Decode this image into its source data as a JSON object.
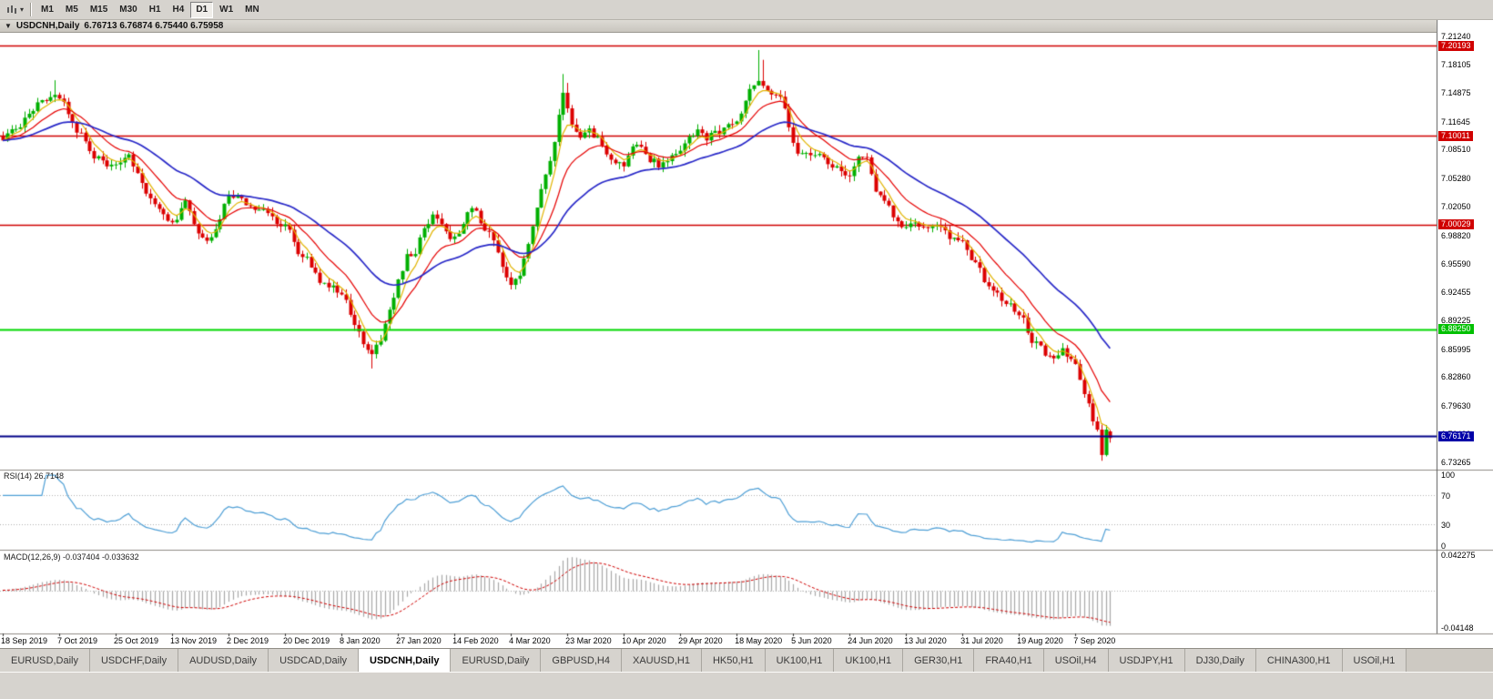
{
  "window": {
    "background": "#d6d3ce"
  },
  "icons": {
    "collapse_arrow": "▼",
    "dropdown_caret": "▾"
  },
  "toolbar": {
    "timeframes": [
      {
        "label": "M1",
        "active": false
      },
      {
        "label": "M5",
        "active": false
      },
      {
        "label": "M15",
        "active": false
      },
      {
        "label": "M30",
        "active": false
      },
      {
        "label": "H1",
        "active": false
      },
      {
        "label": "H4",
        "active": false
      },
      {
        "label": "D1",
        "active": true
      },
      {
        "label": "W1",
        "active": false
      },
      {
        "label": "MN",
        "active": false
      }
    ]
  },
  "chart": {
    "title": {
      "symbol": "USDCNH,Daily",
      "ohlc": "6.76713 6.76874 6.75440 6.75958",
      "open": "6.76713",
      "high": "6.76874",
      "low": "6.75440",
      "close": "6.75958"
    }
  },
  "chart_data": {
    "type": "candlestick",
    "symbol": "USDCNH",
    "timeframe": "Daily",
    "candle_count": 256,
    "x_label_every": 13,
    "x_labels": [
      "18 Sep 2019",
      "7 Oct 2019",
      "25 Oct 2019",
      "13 Nov 2019",
      "2 Dec 2019",
      "20 Dec 2019",
      "8 Jan 2020",
      "27 Jan 2020",
      "14 Feb 2020",
      "4 Mar 2020",
      "23 Mar 2020",
      "10 Apr 2020",
      "29 Apr 2020",
      "18 May 2020",
      "5 Jun 2020",
      "24 Jun 2020",
      "13 Jul 2020",
      "31 Jul 2020",
      "19 Aug 2020",
      "7 Sep 2020"
    ],
    "price_axis_labels": [
      "7.21240",
      "7.18105",
      "7.14875",
      "7.11645",
      "7.08510",
      "7.05280",
      "7.02050",
      "6.98820",
      "6.95590",
      "6.92455",
      "6.89225",
      "6.85995",
      "6.82860",
      "6.79630",
      "6.76400",
      "6.73265"
    ],
    "price_range": {
      "top": 7.2165,
      "bottom": 6.724
    },
    "candle_colors": {
      "up": "#00B000",
      "down": "#DC0000"
    },
    "h_lines": [
      {
        "value": 7.20193,
        "label": "7.20193",
        "color": "#D00000",
        "badge": "#D00000",
        "width": 1.3,
        "layer": "below"
      },
      {
        "value": 7.10011,
        "label": "7.10011",
        "color": "#D00000",
        "badge": "#D00000",
        "width": 1.3,
        "layer": "below"
      },
      {
        "value": 7.00029,
        "label": "7.00029",
        "color": "#D00000",
        "badge": "#D00000",
        "width": 1.3,
        "layer": "below"
      },
      {
        "value": 6.8825,
        "label": "6.88250",
        "color": "#00D800",
        "badge": "#00C000",
        "width": 1.8,
        "layer": "mid"
      },
      {
        "value": 6.76171,
        "label": "6.76171",
        "color": "#000088",
        "badge": "#0000A8",
        "width": 2,
        "layer": "above"
      }
    ],
    "moving_averages": [
      {
        "name": "fast-ma",
        "period": 5,
        "color": "#E2B400",
        "width": 1.2
      },
      {
        "name": "mid-ma",
        "period": 13,
        "color": "#E60000",
        "width": 1.2
      },
      {
        "name": "slow-ma",
        "period": 34,
        "color": "#2828C8",
        "width": 1.7
      }
    ],
    "close_anchors": [
      [
        0,
        7.095
      ],
      [
        3,
        7.112
      ],
      [
        6,
        7.126
      ],
      [
        9,
        7.138
      ],
      [
        12,
        7.142
      ],
      [
        15,
        7.127
      ],
      [
        18,
        7.101
      ],
      [
        21,
        7.078
      ],
      [
        24,
        7.068
      ],
      [
        27,
        7.065
      ],
      [
        29,
        7.073
      ],
      [
        32,
        7.044
      ],
      [
        35,
        7.018
      ],
      [
        39,
        7.004
      ],
      [
        42,
        7.022
      ],
      [
        45,
        6.986
      ],
      [
        47,
        6.974
      ],
      [
        50,
        6.999
      ],
      [
        52,
        7.031
      ],
      [
        55,
        7.029
      ],
      [
        58,
        7.017
      ],
      [
        61,
        7.007
      ],
      [
        65,
        6.997
      ],
      [
        68,
        6.971
      ],
      [
        71,
        6.954
      ],
      [
        74,
        6.931
      ],
      [
        78,
        6.921
      ],
      [
        81,
        6.891
      ],
      [
        84,
        6.854
      ],
      [
        85,
        6.846
      ],
      [
        87,
        6.868
      ],
      [
        89,
        6.896
      ],
      [
        91,
        6.931
      ],
      [
        93,
        6.961
      ],
      [
        95,
        6.972
      ],
      [
        97,
        6.996
      ],
      [
        99,
        7.012
      ],
      [
        101,
        6.998
      ],
      [
        104,
        6.986
      ],
      [
        106,
        7.003
      ],
      [
        108,
        7.018
      ],
      [
        110,
        7.004
      ],
      [
        112,
        6.988
      ],
      [
        114,
        6.961
      ],
      [
        116,
        6.937
      ],
      [
        117,
        6.931
      ],
      [
        119,
        6.946
      ],
      [
        121,
        6.976
      ],
      [
        123,
        7.021
      ],
      [
        125,
        7.061
      ],
      [
        127,
        7.098
      ],
      [
        129,
        7.148
      ],
      [
        131,
        7.115
      ],
      [
        133,
        7.102
      ],
      [
        135,
        7.112
      ],
      [
        137,
        7.098
      ],
      [
        139,
        7.078
      ],
      [
        141,
        7.07
      ],
      [
        143,
        7.067
      ],
      [
        145,
        7.081
      ],
      [
        147,
        7.091
      ],
      [
        149,
        7.077
      ],
      [
        151,
        7.067
      ],
      [
        153,
        7.071
      ],
      [
        156,
        7.079
      ],
      [
        158,
        7.093
      ],
      [
        160,
        7.101
      ],
      [
        162,
        7.097
      ],
      [
        164,
        7.101
      ],
      [
        166,
        7.107
      ],
      [
        169,
        7.124
      ],
      [
        171,
        7.141
      ],
      [
        173,
        7.157
      ],
      [
        174,
        7.167
      ],
      [
        176,
        7.154
      ],
      [
        178,
        7.147
      ],
      [
        180,
        7.131
      ],
      [
        182,
        7.091
      ],
      [
        184,
        7.077
      ],
      [
        186,
        7.071
      ],
      [
        188,
        7.077
      ],
      [
        190,
        7.074
      ],
      [
        192,
        7.067
      ],
      [
        195,
        7.061
      ],
      [
        197,
        7.071
      ],
      [
        199,
        7.067
      ],
      [
        201,
        7.041
      ],
      [
        203,
        7.021
      ],
      [
        205,
        7.009
      ],
      [
        208,
        7.001
      ],
      [
        210,
        7.007
      ],
      [
        212,
        7.001
      ],
      [
        214,
        6.994
      ],
      [
        216,
        6.991
      ],
      [
        218,
        6.984
      ],
      [
        221,
        6.974
      ],
      [
        223,
        6.957
      ],
      [
        225,
        6.947
      ],
      [
        227,
        6.927
      ],
      [
        229,
        6.917
      ],
      [
        231,
        6.911
      ],
      [
        234,
        6.899
      ],
      [
        236,
        6.881
      ],
      [
        238,
        6.867
      ],
      [
        240,
        6.857
      ],
      [
        242,
        6.851
      ],
      [
        244,
        6.861
      ],
      [
        246,
        6.847
      ],
      [
        247,
        6.839
      ],
      [
        249,
        6.813
      ],
      [
        251,
        6.779
      ],
      [
        252,
        6.773
      ],
      [
        253,
        6.744
      ],
      [
        254,
        6.766
      ],
      [
        255,
        6.75958
      ]
    ],
    "wick_overrides": {
      "12": {
        "h": 7.163
      },
      "85": {
        "l": 6.838
      },
      "129": {
        "h": 7.17
      },
      "130": {
        "h": 7.16
      },
      "174": {
        "h": 7.197
      },
      "175": {
        "h": 7.186
      },
      "253": {
        "l": 6.734
      }
    },
    "last_candle": {
      "o": 6.76713,
      "h": 6.76874,
      "l": 6.7544,
      "c": 6.75958
    },
    "rsi": {
      "label": "RSI(14) 26.7148",
      "period": 14,
      "current": "26.7148",
      "color": "#4E9FD6",
      "axis": [
        "100",
        "70",
        "30",
        "0"
      ],
      "levels": [
        70,
        30
      ]
    },
    "macd": {
      "label": "MACD(12,26,9) -0.037404 -0.033632",
      "fast": 12,
      "slow": 26,
      "signal_period": 9,
      "main_value": "-0.037404",
      "signal_value": "-0.033632",
      "histogram_color": "#A8A8A8",
      "signal_color": "#D00000",
      "axis": [
        "0.042275",
        "-0.04148"
      ]
    }
  },
  "tabs": [
    {
      "label": "EURUSD,Daily",
      "active": false
    },
    {
      "label": "USDCHF,Daily",
      "active": false
    },
    {
      "label": "AUDUSD,Daily",
      "active": false
    },
    {
      "label": "USDCAD,Daily",
      "active": false
    },
    {
      "label": "USDCNH,Daily",
      "active": true
    },
    {
      "label": "EURUSD,Daily",
      "active": false
    },
    {
      "label": "GBPUSD,H4",
      "active": false
    },
    {
      "label": "XAUUSD,H1",
      "active": false
    },
    {
      "label": "HK50,H1",
      "active": false
    },
    {
      "label": "UK100,H1",
      "active": false
    },
    {
      "label": "UK100,H1",
      "active": false
    },
    {
      "label": "GER30,H1",
      "active": false
    },
    {
      "label": "FRA40,H1",
      "active": false
    },
    {
      "label": "USOil,H4",
      "active": false
    },
    {
      "label": "USDJPY,H1",
      "active": false
    },
    {
      "label": "DJ30,Daily",
      "active": false
    },
    {
      "label": "CHINA300,H1",
      "active": false
    },
    {
      "label": "USOil,H1",
      "active": false
    }
  ]
}
